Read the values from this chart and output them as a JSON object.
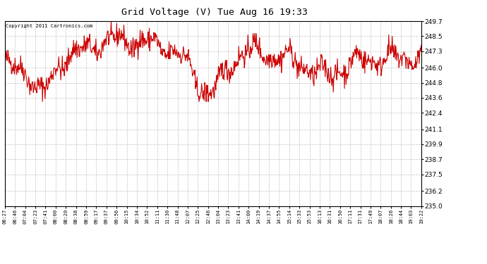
{
  "title": "Grid Voltage (V) Tue Aug 16 19:33",
  "copyright_text": "Copyright 2011 Cartronics.com",
  "line_color": "#cc0000",
  "bg_color": "#ffffff",
  "plot_bg_color": "#ffffff",
  "grid_color": "#bbbbbb",
  "ylim": [
    235.0,
    249.7
  ],
  "yticks": [
    235.0,
    236.2,
    237.5,
    238.7,
    239.9,
    241.1,
    242.4,
    243.6,
    244.8,
    246.0,
    247.3,
    248.5,
    249.7
  ],
  "xtick_labels": [
    "06:27",
    "06:46",
    "07:04",
    "07:23",
    "07:41",
    "08:00",
    "08:20",
    "08:38",
    "08:59",
    "09:17",
    "09:37",
    "09:56",
    "10:15",
    "10:34",
    "10:52",
    "11:11",
    "11:30",
    "11:48",
    "12:07",
    "12:25",
    "12:46",
    "13:04",
    "13:23",
    "13:41",
    "14:00",
    "14:19",
    "14:37",
    "14:55",
    "15:14",
    "15:33",
    "15:53",
    "16:13",
    "16:31",
    "16:50",
    "17:11",
    "17:31",
    "17:49",
    "18:07",
    "18:26",
    "18:44",
    "19:03",
    "19:22"
  ],
  "seed": 42,
  "n_points": 820,
  "figsize": [
    6.9,
    3.75
  ],
  "dpi": 100
}
